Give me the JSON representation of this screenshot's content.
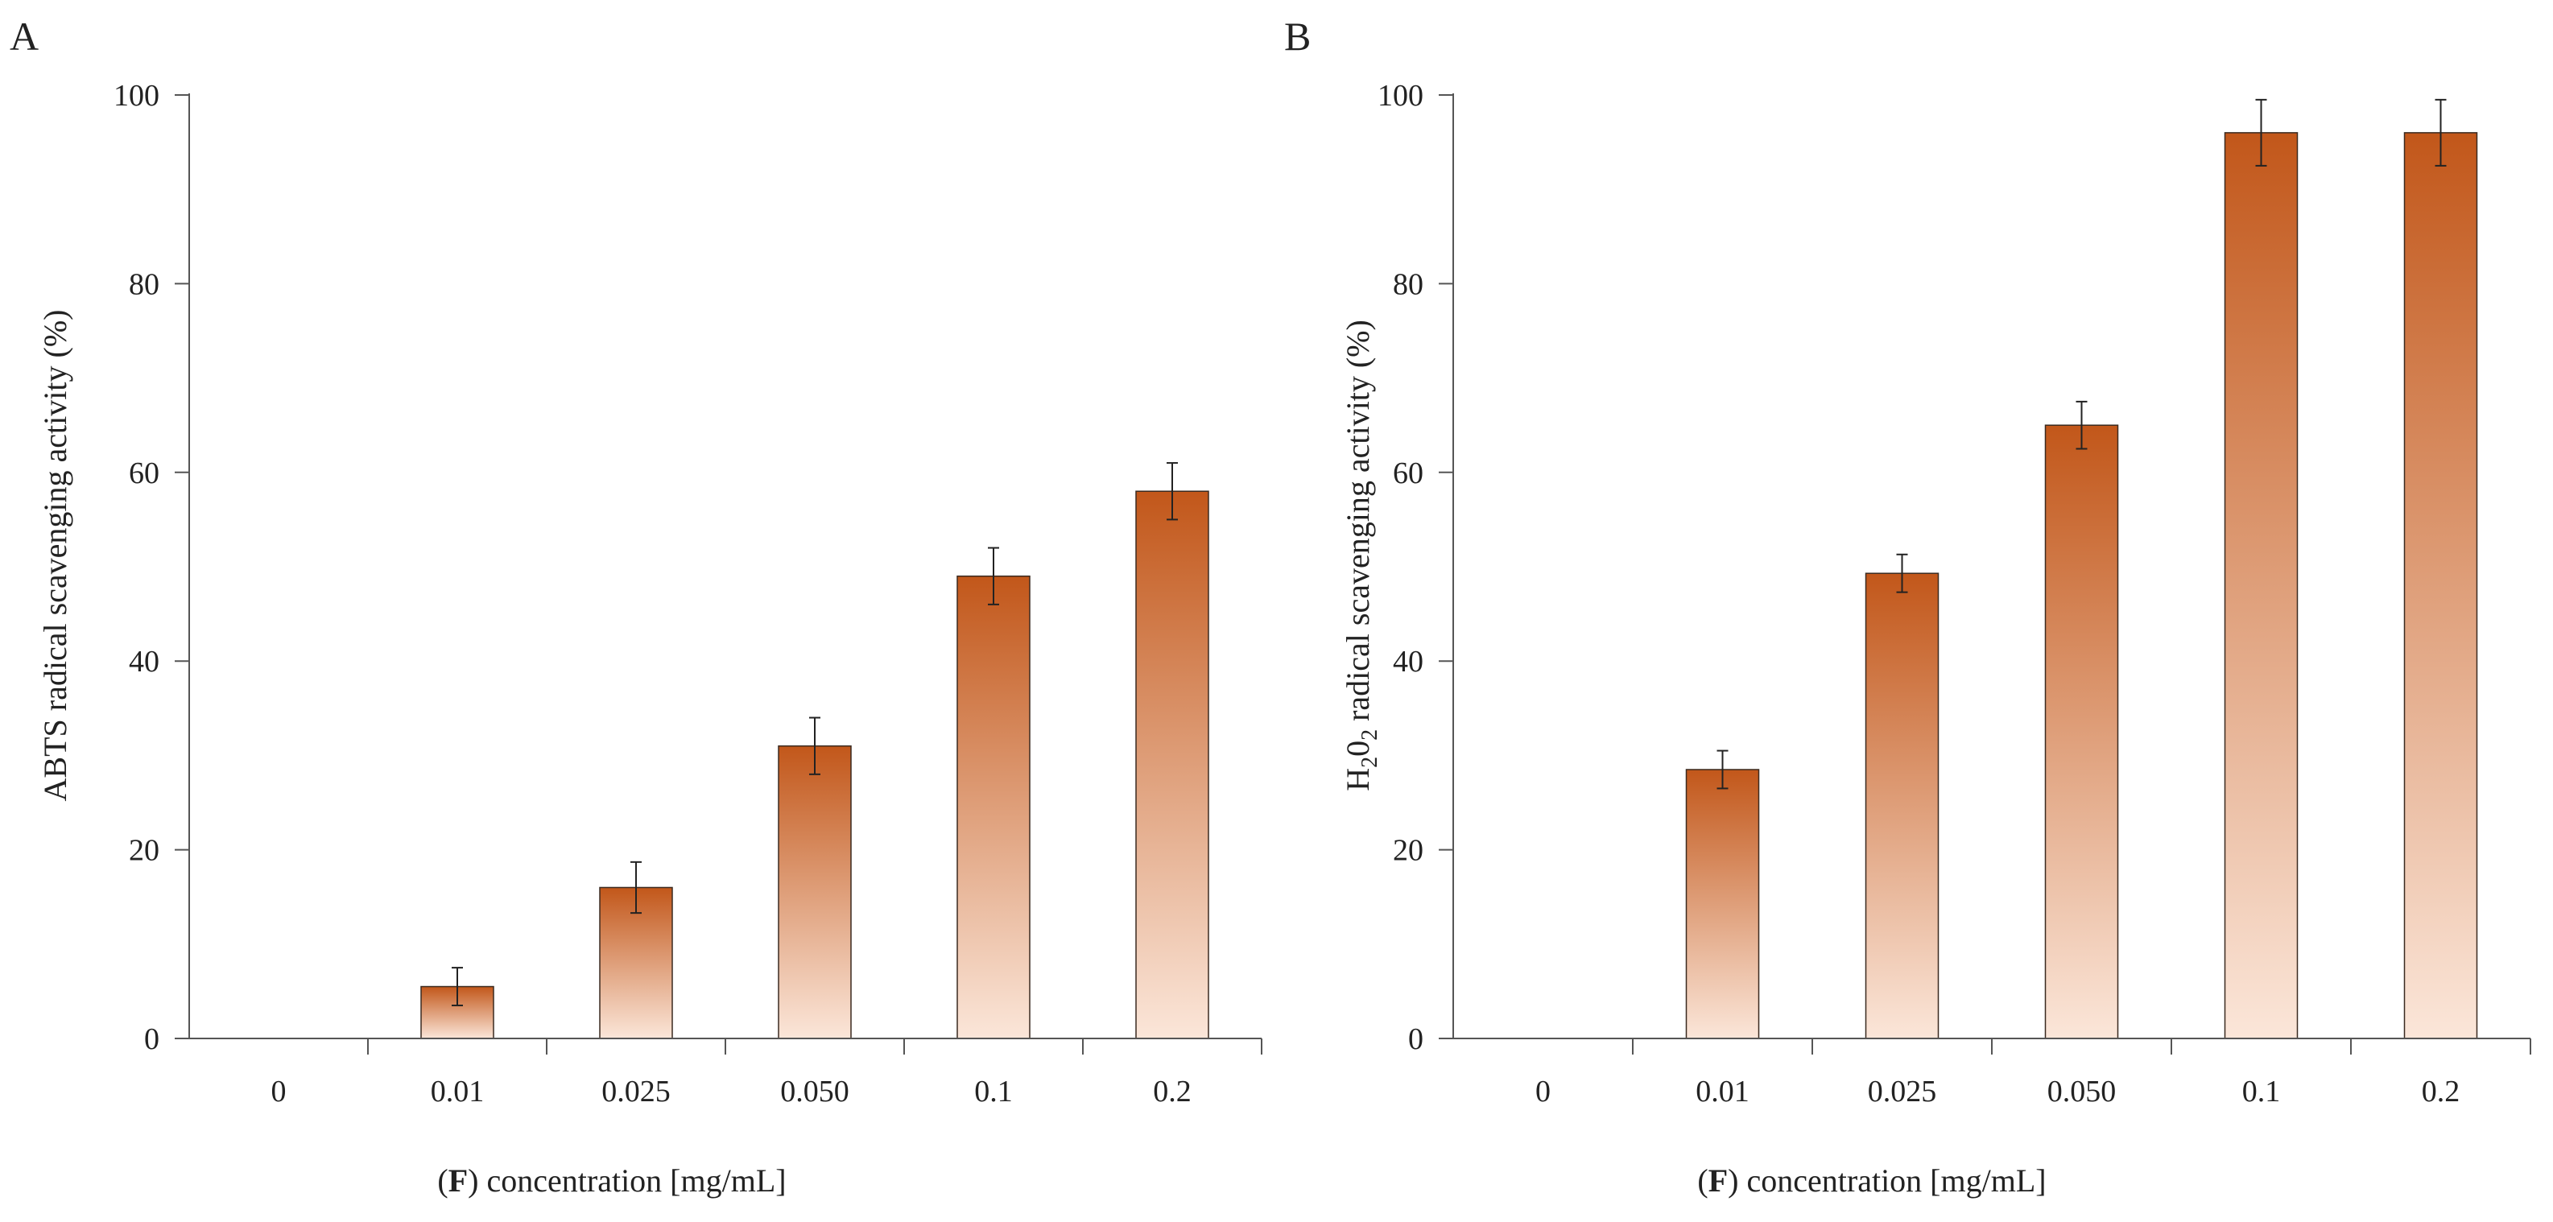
{
  "chart_data": [
    {
      "type": "bar",
      "panel_label": "A",
      "categories": [
        "0",
        "0.01",
        "0.025",
        "0.050",
        "0.1",
        "0.2"
      ],
      "values": [
        0,
        5.5,
        16,
        31,
        49,
        58
      ],
      "errors": [
        0,
        2,
        2.7,
        3,
        3,
        3
      ],
      "ylabel": "ABTS  radical scavenging activity (%)",
      "xlabel_bold": "F",
      "xlabel_rest": " concentration [mg/mL]",
      "ylim": [
        0,
        100
      ],
      "yticks": [
        0,
        20,
        40,
        60,
        80,
        100
      ],
      "colors": {
        "top": "#c2571a",
        "bottom": "#fbe6d9",
        "edge": "#3a2a20"
      }
    },
    {
      "type": "bar",
      "panel_label": "B",
      "categories": [
        "0",
        "0.01",
        "0.025",
        "0.050",
        "0.1",
        "0.2"
      ],
      "values": [
        0,
        28.5,
        49.3,
        65,
        96,
        96
      ],
      "errors": [
        0,
        2,
        2,
        2.5,
        3.5,
        3.5
      ],
      "ylabel_parts": [
        "H",
        "2",
        "0",
        "2",
        "  radical scavenging activity (%)"
      ],
      "xlabel_bold": "F",
      "xlabel_rest": " concentration [mg/mL]",
      "ylim": [
        0,
        100
      ],
      "yticks": [
        0,
        20,
        40,
        60,
        80,
        100
      ],
      "colors": {
        "top": "#c2571a",
        "bottom": "#fbe6d9",
        "edge": "#3a2a20"
      }
    }
  ]
}
